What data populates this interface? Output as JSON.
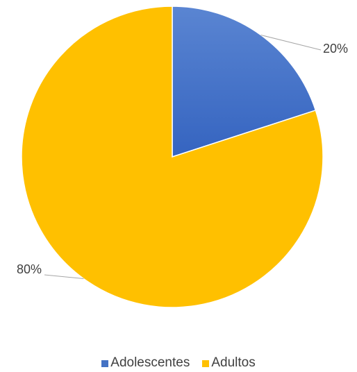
{
  "chart_data": {
    "type": "pie",
    "categories": [
      "Adolescentes",
      "Adultos"
    ],
    "values": [
      20,
      80
    ],
    "data_labels": [
      "20%",
      "80%"
    ],
    "colors": [
      "#4472c4",
      "#ffc000"
    ],
    "legend_position": "bottom",
    "title": ""
  },
  "legend": {
    "items": [
      {
        "label": "Adolescentes",
        "color": "#4472c4"
      },
      {
        "label": "Adultos",
        "color": "#ffc000"
      }
    ]
  }
}
